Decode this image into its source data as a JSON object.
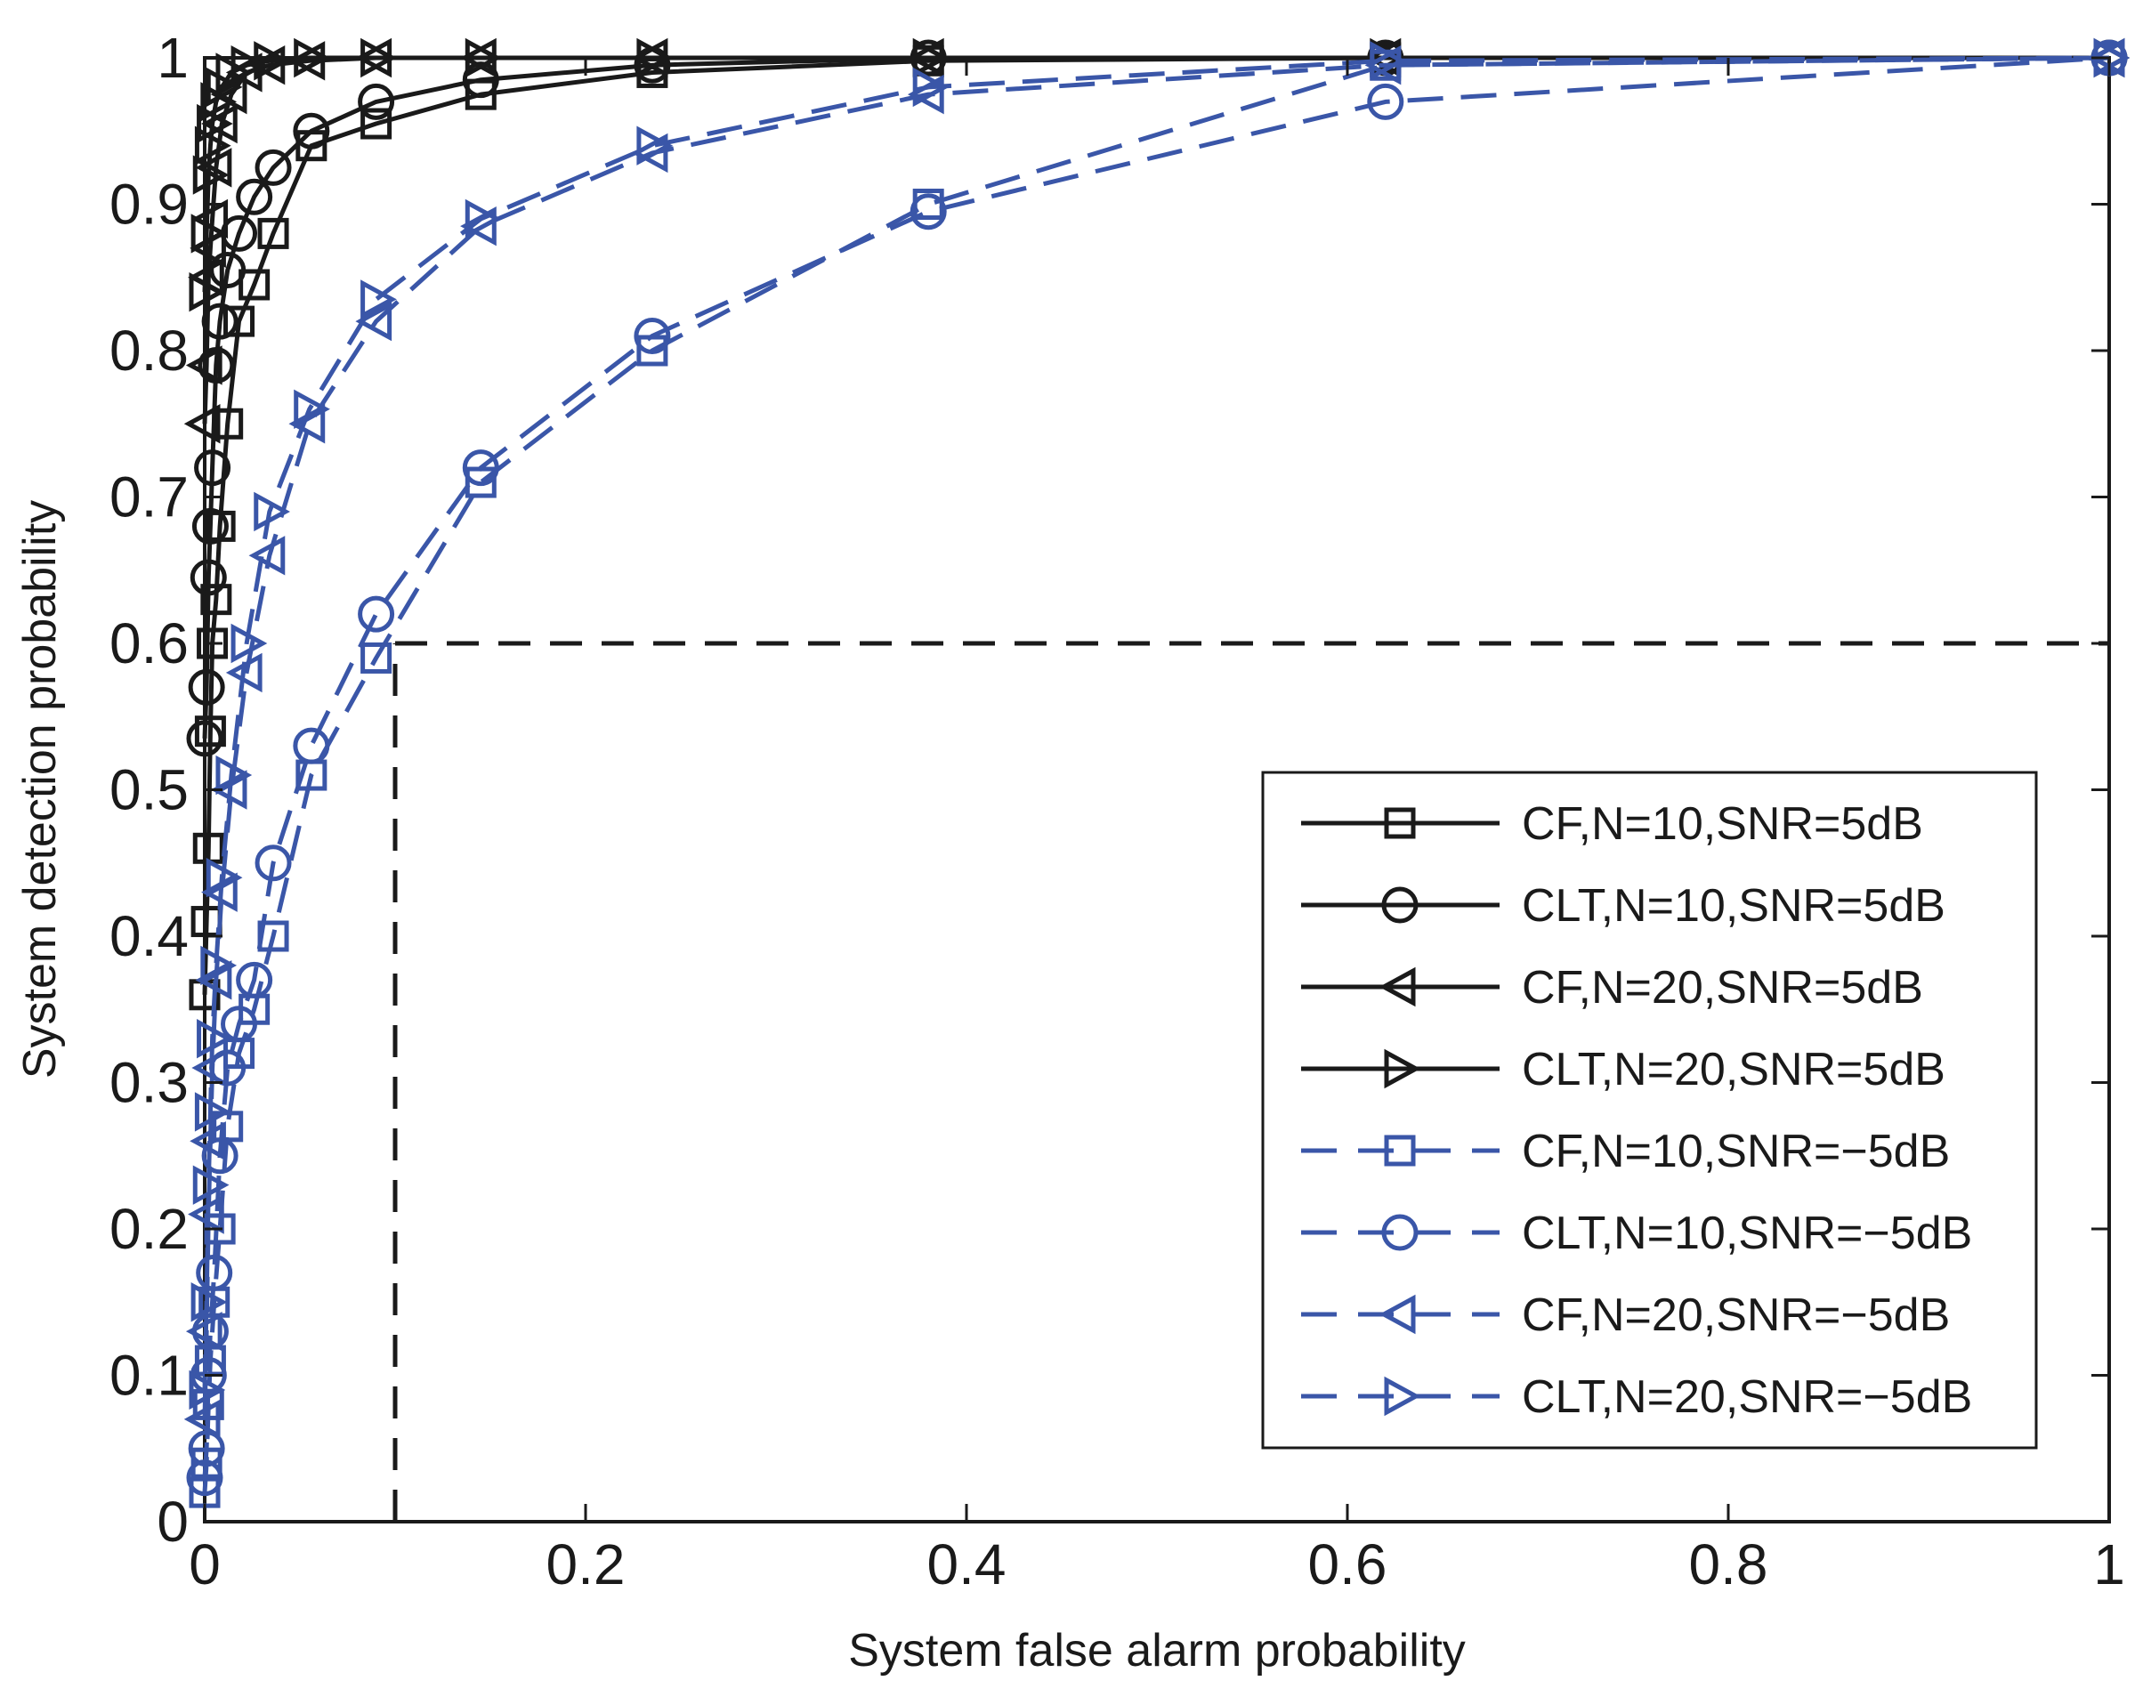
{
  "chart_data": {
    "type": "line",
    "title": "",
    "xlabel": "System false alarm probability",
    "ylabel": "System detection probability",
    "xlim": [
      0,
      1
    ],
    "ylim": [
      0,
      1
    ],
    "xticks": [
      0,
      0.2,
      0.4,
      0.6,
      0.8,
      1
    ],
    "yticks": [
      0,
      0.1,
      0.2,
      0.3,
      0.4,
      0.5,
      0.6,
      0.7,
      0.8,
      0.9,
      1
    ],
    "xtick_labels": [
      "0",
      "0.2",
      "0.4",
      "0.6",
      "0.8",
      "1"
    ],
    "ytick_labels": [
      "0",
      "0.1",
      "0.2",
      "0.3",
      "0.4",
      "0.5",
      "0.6",
      "0.7",
      "0.8",
      "0.9",
      "1"
    ],
    "legend_position": "lower-right",
    "reference_lines": [
      {
        "orientation": "vertical",
        "value": 0.1,
        "style": "dashed",
        "color": "#1a1a1a"
      },
      {
        "orientation": "horizontal",
        "value": 0.6,
        "style": "dashed",
        "color": "#1a1a1a"
      }
    ],
    "colors": {
      "black": "#1a1a1a",
      "blue": "#3a56a8"
    },
    "series": [
      {
        "name": "CF,N=10,SNR=5dB",
        "color": "#1a1a1a",
        "line": "solid",
        "marker": "square",
        "x": [
          0.0,
          0.001,
          0.002,
          0.003,
          0.004,
          0.006,
          0.008,
          0.012,
          0.018,
          0.026,
          0.036,
          0.056,
          0.09,
          0.145,
          0.235,
          0.38,
          0.62,
          1.0
        ],
        "y": [
          0.36,
          0.41,
          0.46,
          0.54,
          0.6,
          0.63,
          0.68,
          0.75,
          0.82,
          0.845,
          0.88,
          0.94,
          0.955,
          0.975,
          0.99,
          0.998,
          1.0,
          1.0
        ]
      },
      {
        "name": "CLT,N=10,SNR=5dB",
        "color": "#1a1a1a",
        "line": "solid",
        "marker": "circle",
        "x": [
          0.0,
          0.001,
          0.002,
          0.003,
          0.004,
          0.006,
          0.008,
          0.012,
          0.018,
          0.026,
          0.036,
          0.056,
          0.09,
          0.145,
          0.235,
          0.38,
          0.62,
          1.0
        ],
        "y": [
          0.535,
          0.57,
          0.645,
          0.68,
          0.72,
          0.79,
          0.82,
          0.855,
          0.88,
          0.905,
          0.925,
          0.95,
          0.97,
          0.985,
          0.995,
          1.0,
          1.0,
          1.0
        ]
      },
      {
        "name": "CF,N=20,SNR=5dB",
        "color": "#1a1a1a",
        "line": "solid",
        "marker": "triangle-left",
        "x": [
          0.0,
          0.001,
          0.002,
          0.003,
          0.004,
          0.006,
          0.009,
          0.014,
          0.022,
          0.034,
          0.055,
          0.09,
          0.145,
          0.235,
          0.38,
          0.62,
          1.0
        ],
        "y": [
          0.75,
          0.79,
          0.85,
          0.87,
          0.89,
          0.925,
          0.955,
          0.975,
          0.99,
          0.995,
          0.998,
          1.0,
          1.0,
          1.0,
          1.0,
          1.0,
          1.0
        ]
      },
      {
        "name": "CLT,N=20,SNR=5dB",
        "color": "#1a1a1a",
        "line": "solid",
        "marker": "triangle-right",
        "x": [
          0.0,
          0.001,
          0.002,
          0.003,
          0.004,
          0.006,
          0.009,
          0.014,
          0.022,
          0.034,
          0.055,
          0.09,
          0.145,
          0.235,
          0.38,
          0.62,
          1.0
        ],
        "y": [
          0.84,
          0.88,
          0.92,
          0.94,
          0.955,
          0.97,
          0.98,
          0.99,
          0.995,
          0.998,
          1.0,
          1.0,
          1.0,
          1.0,
          1.0,
          1.0,
          1.0
        ]
      },
      {
        "name": "CF,N=10,SNR=−5dB",
        "color": "#3a56a8",
        "line": "dashed",
        "marker": "square",
        "x": [
          0.0,
          0.001,
          0.002,
          0.003,
          0.005,
          0.008,
          0.012,
          0.018,
          0.026,
          0.036,
          0.056,
          0.09,
          0.145,
          0.235,
          0.38,
          0.62,
          1.0
        ],
        "y": [
          0.02,
          0.04,
          0.08,
          0.11,
          0.15,
          0.2,
          0.27,
          0.32,
          0.35,
          0.4,
          0.51,
          0.59,
          0.71,
          0.8,
          0.9,
          0.995,
          1.0
        ]
      },
      {
        "name": "CLT,N=10,SNR=−5dB",
        "color": "#3a56a8",
        "line": "dashed",
        "marker": "circle",
        "x": [
          0.0,
          0.001,
          0.002,
          0.003,
          0.005,
          0.008,
          0.012,
          0.018,
          0.026,
          0.036,
          0.056,
          0.09,
          0.145,
          0.235,
          0.38,
          0.62,
          1.0
        ],
        "y": [
          0.03,
          0.05,
          0.1,
          0.13,
          0.17,
          0.25,
          0.31,
          0.34,
          0.37,
          0.45,
          0.53,
          0.62,
          0.72,
          0.81,
          0.895,
          0.97,
          1.0
        ]
      },
      {
        "name": "CF,N=20,SNR=−5dB",
        "color": "#3a56a8",
        "line": "dashed",
        "marker": "triangle-left",
        "x": [
          0.0,
          0.001,
          0.002,
          0.003,
          0.004,
          0.006,
          0.009,
          0.014,
          0.022,
          0.034,
          0.055,
          0.09,
          0.145,
          0.235,
          0.38,
          0.62,
          1.0
        ],
        "y": [
          0.07,
          0.13,
          0.21,
          0.26,
          0.31,
          0.37,
          0.43,
          0.5,
          0.58,
          0.66,
          0.75,
          0.82,
          0.885,
          0.935,
          0.975,
          0.995,
          1.0
        ]
      },
      {
        "name": "CLT,N=20,SNR=−5dB",
        "color": "#3a56a8",
        "line": "dashed",
        "marker": "triangle-right",
        "x": [
          0.0,
          0.001,
          0.002,
          0.003,
          0.004,
          0.006,
          0.009,
          0.014,
          0.022,
          0.034,
          0.055,
          0.09,
          0.145,
          0.235,
          0.38,
          0.62,
          1.0
        ],
        "y": [
          0.09,
          0.15,
          0.23,
          0.28,
          0.33,
          0.38,
          0.44,
          0.51,
          0.6,
          0.69,
          0.76,
          0.835,
          0.89,
          0.94,
          0.98,
          0.998,
          1.0
        ]
      }
    ]
  }
}
